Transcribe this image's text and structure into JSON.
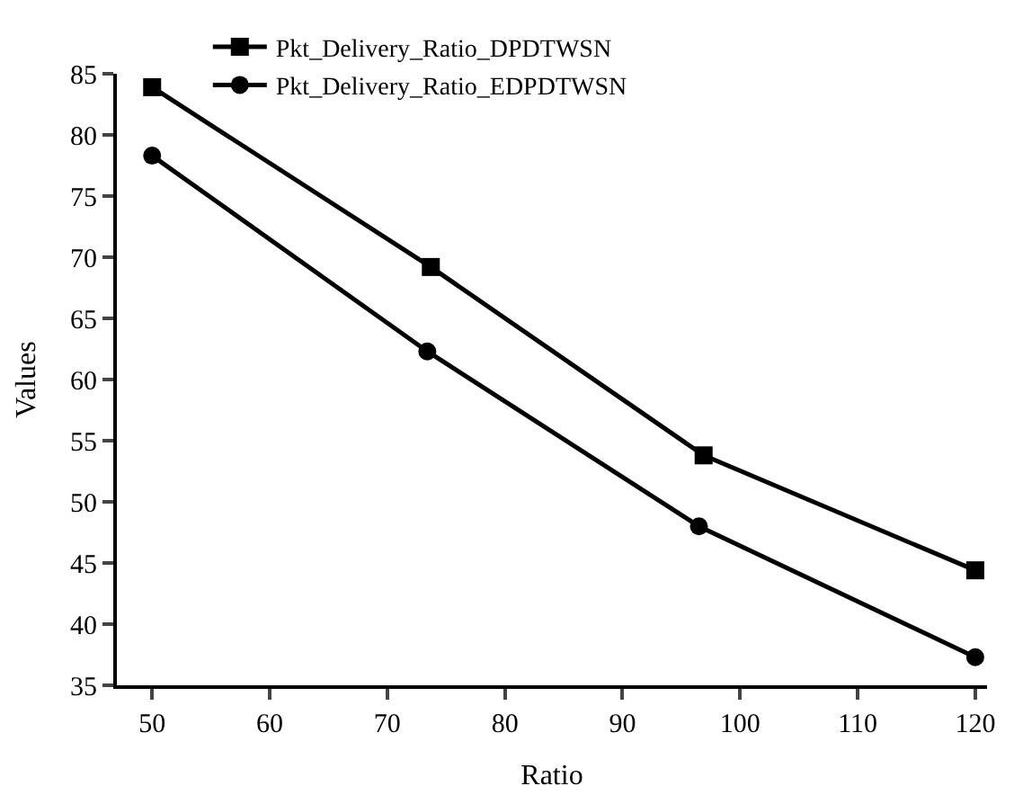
{
  "chart_data": {
    "type": "line",
    "xlabel": "Ratio",
    "ylabel": "Values",
    "series": [
      {
        "name": "Pkt_Delivery_Ratio_DPDTWSN",
        "color": "#000000",
        "marker": "square",
        "x": [
          50,
          73.7,
          96.9,
          120
        ],
        "values": [
          83.9,
          69.2,
          53.8,
          44.4
        ]
      },
      {
        "name": "Pkt_Delivery_Ratio_EDPDTWSN",
        "color": "#000000",
        "marker": "circle",
        "x": [
          50,
          73.4,
          96.5,
          120
        ],
        "values": [
          78.3,
          62.3,
          48.0,
          37.3
        ]
      }
    ],
    "xlim": [
      47,
      121
    ],
    "xticks": [
      50,
      60,
      70,
      80,
      90,
      100,
      110,
      120
    ],
    "ylim": [
      35,
      85
    ],
    "yticks": [
      35,
      40,
      45,
      50,
      55,
      60,
      65,
      70,
      75,
      80,
      85
    ],
    "legend": "top left",
    "line_style": "solid"
  }
}
